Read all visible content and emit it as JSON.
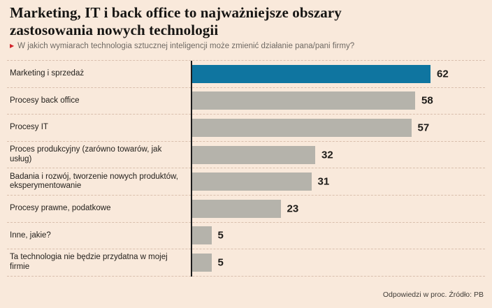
{
  "title": "Marketing, IT i back office to najważniejsze obszary\nzastosowania nowych technologii",
  "subtitle": "W jakich wymiarach technologia sztucznej inteligencji może zmienić działanie pana/pani firmy?",
  "footer": "Odpowiedzi w proc. Źródło: PB",
  "colors": {
    "background": "#f9e9db",
    "highlight_bar": "#0f75a0",
    "bar": "#b5b3ab",
    "accent_red": "#d2232a",
    "axis": "#1c1c1c",
    "separator": "#d9bfad"
  },
  "chart_data": {
    "type": "bar",
    "orientation": "horizontal",
    "title": "Marketing, IT i back office to najważniejsze obszary zastosowania nowych technologii",
    "subtitle": "W jakich wymiarach technologia sztucznej inteligencji może zmienić działanie pana/pani firmy?",
    "unit": "proc.",
    "xlim": [
      0,
      70
    ],
    "grid": false,
    "legend": false,
    "highlight_index": 0,
    "categories": [
      "Marketing i sprzedaż",
      "Procesy back office",
      "Procesy IT",
      "Proces produkcyjny (zarówno towarów, jak usług)",
      "Badania i rozwój, tworzenie nowych produktów, eksperymentowanie",
      "Procesy prawne, podatkowe",
      "Inne, jakie?",
      "Ta technologia nie będzie przydatna w mojej firmie"
    ],
    "values": [
      62,
      58,
      57,
      32,
      31,
      23,
      5,
      5
    ],
    "source": "PB"
  }
}
